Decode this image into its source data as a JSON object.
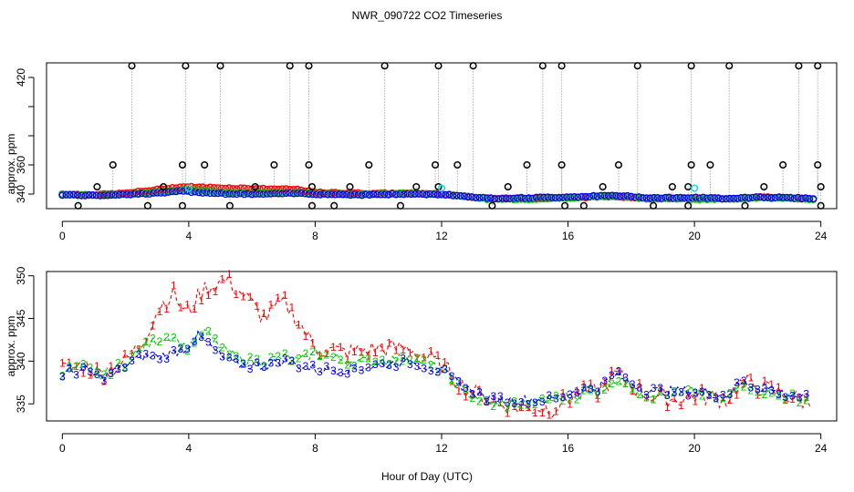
{
  "chart_data": {
    "title": "NWR_090722  CO2 Timeseries",
    "shared_xlabel": "Hour of Day (UTC)",
    "panels": [
      {
        "type": "scatter",
        "ylabel": "approx. ppm",
        "xlim": [
          -0.5,
          24.5
        ],
        "ylim": [
          330,
          430
        ],
        "xticks": [
          0,
          4,
          8,
          12,
          16,
          20,
          24
        ],
        "yticks": [
          340,
          360,
          420
        ],
        "yticks_unlabeled": [
          380,
          400
        ],
        "grid": false,
        "black_open_circles_with_dotted_spikes": [
          {
            "x": 0.5,
            "y": 332
          },
          {
            "x": 1.1,
            "y": 345
          },
          {
            "x": 1.6,
            "y": 360
          },
          {
            "x": 2.2,
            "y": 428
          },
          {
            "x": 2.7,
            "y": 332
          },
          {
            "x": 3.2,
            "y": 345
          },
          {
            "x": 3.8,
            "y": 360
          },
          {
            "x": 3.9,
            "y": 428
          },
          {
            "x": 3.8,
            "y": 332
          },
          {
            "x": 4.5,
            "y": 360
          },
          {
            "x": 5.0,
            "y": 428
          },
          {
            "x": 5.3,
            "y": 332
          },
          {
            "x": 6.1,
            "y": 345
          },
          {
            "x": 6.7,
            "y": 360
          },
          {
            "x": 7.2,
            "y": 428
          },
          {
            "x": 7.8,
            "y": 428
          },
          {
            "x": 7.8,
            "y": 360
          },
          {
            "x": 7.9,
            "y": 345
          },
          {
            "x": 7.9,
            "y": 332
          },
          {
            "x": 8.6,
            "y": 332
          },
          {
            "x": 9.1,
            "y": 345
          },
          {
            "x": 9.7,
            "y": 360
          },
          {
            "x": 10.2,
            "y": 428
          },
          {
            "x": 10.7,
            "y": 332
          },
          {
            "x": 11.2,
            "y": 345
          },
          {
            "x": 11.8,
            "y": 360
          },
          {
            "x": 11.9,
            "y": 428
          },
          {
            "x": 11.9,
            "y": 345
          },
          {
            "x": 12.5,
            "y": 360
          },
          {
            "x": 13.0,
            "y": 428
          },
          {
            "x": 13.6,
            "y": 332
          },
          {
            "x": 14.1,
            "y": 345
          },
          {
            "x": 14.7,
            "y": 360
          },
          {
            "x": 15.2,
            "y": 428
          },
          {
            "x": 15.8,
            "y": 428
          },
          {
            "x": 15.8,
            "y": 360
          },
          {
            "x": 15.9,
            "y": 332
          },
          {
            "x": 16.5,
            "y": 332
          },
          {
            "x": 17.1,
            "y": 345
          },
          {
            "x": 17.6,
            "y": 360
          },
          {
            "x": 18.2,
            "y": 428
          },
          {
            "x": 18.7,
            "y": 332
          },
          {
            "x": 19.3,
            "y": 345
          },
          {
            "x": 19.8,
            "y": 332
          },
          {
            "x": 19.9,
            "y": 428
          },
          {
            "x": 19.9,
            "y": 360
          },
          {
            "x": 19.8,
            "y": 345
          },
          {
            "x": 20.5,
            "y": 360
          },
          {
            "x": 21.1,
            "y": 428
          },
          {
            "x": 21.6,
            "y": 332
          },
          {
            "x": 22.2,
            "y": 345
          },
          {
            "x": 22.8,
            "y": 360
          },
          {
            "x": 23.3,
            "y": 428
          },
          {
            "x": 23.9,
            "y": 428
          },
          {
            "x": 23.9,
            "y": 360
          },
          {
            "x": 24.0,
            "y": 345
          },
          {
            "x": 24.0,
            "y": 332
          }
        ],
        "cyan_points": [
          {
            "x": 4.0,
            "y": 344
          },
          {
            "x": 12.0,
            "y": 344
          },
          {
            "x": 20.0,
            "y": 344
          }
        ],
        "series_profile": [
          {
            "x": 0.0,
            "red": 340.0,
            "green": 339.8,
            "blue": 339.5
          },
          {
            "x": 1.0,
            "red": 339.5,
            "green": 339.2,
            "blue": 339.0
          },
          {
            "x": 2.0,
            "red": 340.5,
            "green": 340.0,
            "blue": 339.8
          },
          {
            "x": 3.0,
            "red": 343.0,
            "green": 341.5,
            "blue": 340.5
          },
          {
            "x": 3.8,
            "red": 345.0,
            "green": 343.0,
            "blue": 342.0
          },
          {
            "x": 4.5,
            "red": 344.5,
            "green": 342.5,
            "blue": 341.0
          },
          {
            "x": 5.5,
            "red": 344.0,
            "green": 341.0,
            "blue": 340.0
          },
          {
            "x": 6.5,
            "red": 343.5,
            "green": 341.0,
            "blue": 340.0
          },
          {
            "x": 7.5,
            "red": 343.0,
            "green": 341.0,
            "blue": 340.5
          },
          {
            "x": 8.0,
            "red": 341.0,
            "green": 340.5,
            "blue": 340.0
          },
          {
            "x": 9.5,
            "red": 340.5,
            "green": 340.0,
            "blue": 339.5
          },
          {
            "x": 11.0,
            "red": 340.5,
            "green": 340.5,
            "blue": 340.0
          },
          {
            "x": 12.0,
            "red": 340.0,
            "green": 339.8,
            "blue": 339.8
          },
          {
            "x": 12.5,
            "red": 339.0,
            "green": 339.0,
            "blue": 339.0
          },
          {
            "x": 13.5,
            "red": 337.0,
            "green": 336.5,
            "blue": 337.0
          },
          {
            "x": 15.0,
            "red": 337.0,
            "green": 336.5,
            "blue": 337.5
          },
          {
            "x": 16.0,
            "red": 337.5,
            "green": 337.5,
            "blue": 338.0
          },
          {
            "x": 17.5,
            "red": 338.5,
            "green": 338.5,
            "blue": 339.0
          },
          {
            "x": 18.5,
            "red": 337.0,
            "green": 337.0,
            "blue": 337.5
          },
          {
            "x": 20.0,
            "red": 337.0,
            "green": 336.5,
            "blue": 337.5
          },
          {
            "x": 21.0,
            "red": 336.5,
            "green": 336.5,
            "blue": 337.0
          },
          {
            "x": 22.0,
            "red": 338.0,
            "green": 337.5,
            "blue": 338.0
          },
          {
            "x": 23.8,
            "red": 336.5,
            "green": 336.5,
            "blue": 337.0
          }
        ],
        "series": [
          {
            "name": "1",
            "color": "#ff0000"
          },
          {
            "name": "2",
            "color": "#00cc00"
          },
          {
            "name": "3",
            "color": "#0000ff"
          }
        ],
        "spike_color": "#b0b0b0"
      },
      {
        "type": "line",
        "ylabel": "approx. ppm",
        "xlim": [
          -0.5,
          24.5
        ],
        "ylim": [
          333.0,
          350.5
        ],
        "xticks": [
          0,
          4,
          8,
          12,
          16,
          20,
          24
        ],
        "yticks": [
          335,
          340,
          345,
          350
        ],
        "grid": false,
        "point_symbols": [
          "1",
          "2",
          "3"
        ],
        "series": [
          {
            "name": "1",
            "color": "#ff0000",
            "profile": [
              {
                "x": 0.0,
                "y": 339.0
              },
              {
                "x": 0.7,
                "y": 339.5
              },
              {
                "x": 1.2,
                "y": 338.5
              },
              {
                "x": 2.0,
                "y": 340.0
              },
              {
                "x": 2.5,
                "y": 342.0
              },
              {
                "x": 3.0,
                "y": 346.0
              },
              {
                "x": 3.5,
                "y": 348.0
              },
              {
                "x": 3.9,
                "y": 345.5
              },
              {
                "x": 4.5,
                "y": 348.5
              },
              {
                "x": 5.2,
                "y": 349.5
              },
              {
                "x": 5.8,
                "y": 347.5
              },
              {
                "x": 6.4,
                "y": 345.0
              },
              {
                "x": 7.0,
                "y": 347.0
              },
              {
                "x": 7.5,
                "y": 344.5
              },
              {
                "x": 8.0,
                "y": 341.5
              },
              {
                "x": 9.0,
                "y": 341.0
              },
              {
                "x": 10.0,
                "y": 341.5
              },
              {
                "x": 11.0,
                "y": 341.5
              },
              {
                "x": 12.0,
                "y": 339.5
              },
              {
                "x": 12.7,
                "y": 337.0
              },
              {
                "x": 13.5,
                "y": 335.5
              },
              {
                "x": 14.5,
                "y": 334.5
              },
              {
                "x": 15.5,
                "y": 334.5
              },
              {
                "x": 16.2,
                "y": 336.0
              },
              {
                "x": 17.0,
                "y": 336.5
              },
              {
                "x": 17.5,
                "y": 338.5
              },
              {
                "x": 18.5,
                "y": 336.0
              },
              {
                "x": 19.5,
                "y": 335.5
              },
              {
                "x": 20.0,
                "y": 336.0
              },
              {
                "x": 21.0,
                "y": 335.5
              },
              {
                "x": 21.5,
                "y": 337.5
              },
              {
                "x": 22.5,
                "y": 336.5
              },
              {
                "x": 23.7,
                "y": 335.0
              }
            ]
          },
          {
            "name": "2",
            "color": "#00cc00",
            "profile": [
              {
                "x": 0.0,
                "y": 338.8
              },
              {
                "x": 0.7,
                "y": 339.2
              },
              {
                "x": 1.2,
                "y": 338.2
              },
              {
                "x": 2.0,
                "y": 339.8
              },
              {
                "x": 2.5,
                "y": 341.5
              },
              {
                "x": 3.0,
                "y": 342.5
              },
              {
                "x": 3.5,
                "y": 343.0
              },
              {
                "x": 3.9,
                "y": 341.5
              },
              {
                "x": 4.5,
                "y": 343.5
              },
              {
                "x": 5.2,
                "y": 341.0
              },
              {
                "x": 5.8,
                "y": 340.0
              },
              {
                "x": 6.4,
                "y": 340.0
              },
              {
                "x": 7.0,
                "y": 340.5
              },
              {
                "x": 7.5,
                "y": 340.0
              },
              {
                "x": 8.0,
                "y": 341.0
              },
              {
                "x": 9.0,
                "y": 340.0
              },
              {
                "x": 10.0,
                "y": 340.0
              },
              {
                "x": 11.0,
                "y": 340.5
              },
              {
                "x": 12.0,
                "y": 339.0
              },
              {
                "x": 12.7,
                "y": 336.5
              },
              {
                "x": 13.5,
                "y": 335.0
              },
              {
                "x": 14.5,
                "y": 335.0
              },
              {
                "x": 15.5,
                "y": 335.5
              },
              {
                "x": 16.2,
                "y": 336.0
              },
              {
                "x": 17.0,
                "y": 336.5
              },
              {
                "x": 17.5,
                "y": 338.0
              },
              {
                "x": 18.5,
                "y": 336.0
              },
              {
                "x": 19.5,
                "y": 336.0
              },
              {
                "x": 20.0,
                "y": 336.5
              },
              {
                "x": 21.0,
                "y": 335.5
              },
              {
                "x": 21.5,
                "y": 337.5
              },
              {
                "x": 22.5,
                "y": 336.0
              },
              {
                "x": 23.7,
                "y": 335.5
              }
            ]
          },
          {
            "name": "3",
            "color": "#0000ff",
            "profile": [
              {
                "x": 0.0,
                "y": 338.5
              },
              {
                "x": 0.7,
                "y": 339.0
              },
              {
                "x": 1.2,
                "y": 338.0
              },
              {
                "x": 2.0,
                "y": 339.5
              },
              {
                "x": 2.5,
                "y": 340.5
              },
              {
                "x": 3.0,
                "y": 340.5
              },
              {
                "x": 3.5,
                "y": 341.0
              },
              {
                "x": 3.9,
                "y": 341.5
              },
              {
                "x": 4.3,
                "y": 343.0
              },
              {
                "x": 5.2,
                "y": 340.0
              },
              {
                "x": 5.8,
                "y": 339.5
              },
              {
                "x": 6.4,
                "y": 339.5
              },
              {
                "x": 7.0,
                "y": 340.0
              },
              {
                "x": 7.5,
                "y": 339.5
              },
              {
                "x": 8.0,
                "y": 339.0
              },
              {
                "x": 9.0,
                "y": 339.0
              },
              {
                "x": 10.0,
                "y": 339.5
              },
              {
                "x": 11.0,
                "y": 340.0
              },
              {
                "x": 12.0,
                "y": 338.8
              },
              {
                "x": 12.7,
                "y": 337.0
              },
              {
                "x": 13.5,
                "y": 335.5
              },
              {
                "x": 14.5,
                "y": 335.5
              },
              {
                "x": 15.5,
                "y": 335.5
              },
              {
                "x": 16.2,
                "y": 336.5
              },
              {
                "x": 17.0,
                "y": 337.0
              },
              {
                "x": 17.5,
                "y": 338.5
              },
              {
                "x": 18.5,
                "y": 336.5
              },
              {
                "x": 19.5,
                "y": 336.5
              },
              {
                "x": 20.0,
                "y": 336.5
              },
              {
                "x": 21.0,
                "y": 336.0
              },
              {
                "x": 21.5,
                "y": 337.5
              },
              {
                "x": 22.5,
                "y": 336.5
              },
              {
                "x": 23.7,
                "y": 335.5
              }
            ]
          }
        ]
      }
    ]
  }
}
